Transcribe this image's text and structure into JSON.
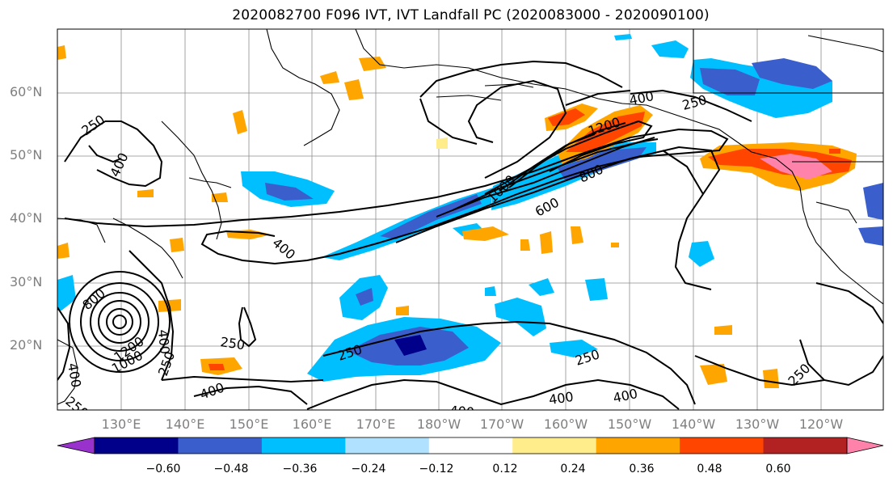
{
  "title": "2020082700 F096 IVT, IVT Landfall PC (2020083000 - 2020090100)",
  "lat_labels": [
    "60°N",
    "50°N",
    "40°N",
    "30°N",
    "20°N"
  ],
  "lon_labels": [
    "130°E",
    "140°E",
    "150°E",
    "160°E",
    "170°E",
    "180°W",
    "170°W",
    "160°W",
    "150°W",
    "140°W",
    "130°W",
    "120°W"
  ],
  "contour_labels": [
    "250",
    "400",
    "250",
    "400",
    "800",
    "400",
    "1200",
    "1000",
    "250",
    "250",
    "400",
    "250",
    "1000",
    "1200",
    "800",
    "600",
    "400",
    "250",
    "400",
    "400",
    "250",
    "400",
    "250"
  ],
  "colorbar": {
    "colors": [
      "#9932cc",
      "#00008b",
      "#3a5fcd",
      "#00bfff",
      "#b0e2ff",
      "#ffffff",
      "#ffec8b",
      "#ffa500",
      "#ff4500",
      "#b22222",
      "#ff82ab"
    ],
    "tick_labels": [
      "−0.60",
      "−0.48",
      "−0.36",
      "−0.24",
      "−0.12",
      "0.12",
      "0.24",
      "0.36",
      "0.48",
      "0.60"
    ]
  }
}
